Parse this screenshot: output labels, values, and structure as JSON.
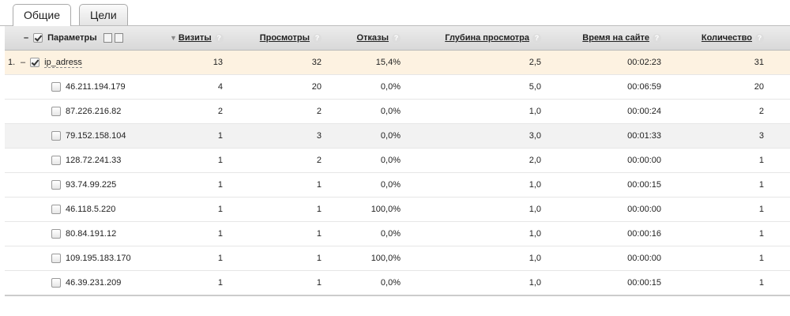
{
  "tabs": [
    "Общие",
    "Цели"
  ],
  "header": {
    "collapse": "–",
    "columns": [
      "Параметры",
      "Визиты",
      "Просмотры",
      "Отказы",
      "Глубина просмотра",
      "Время на сайте",
      "Количество"
    ]
  },
  "group": {
    "index": "1.",
    "collapse": "–",
    "label": "ip_adress",
    "values": [
      "13",
      "32",
      "15,4%",
      "2,5",
      "00:02:23",
      "31"
    ]
  },
  "rows": [
    {
      "label": "46.211.194.179",
      "values": [
        "4",
        "20",
        "0,0%",
        "5,0",
        "00:06:59",
        "20"
      ]
    },
    {
      "label": "87.226.216.82",
      "values": [
        "2",
        "2",
        "0,0%",
        "1,0",
        "00:00:24",
        "2"
      ]
    },
    {
      "label": "79.152.158.104",
      "values": [
        "1",
        "3",
        "0,0%",
        "3,0",
        "00:01:33",
        "3"
      ]
    },
    {
      "label": "128.72.241.33",
      "values": [
        "1",
        "2",
        "0,0%",
        "2,0",
        "00:00:00",
        "1"
      ]
    },
    {
      "label": "93.74.99.225",
      "values": [
        "1",
        "1",
        "0,0%",
        "1,0",
        "00:00:15",
        "1"
      ]
    },
    {
      "label": "46.118.5.220",
      "values": [
        "1",
        "1",
        "100,0%",
        "1,0",
        "00:00:00",
        "1"
      ]
    },
    {
      "label": "80.84.191.12",
      "values": [
        "1",
        "1",
        "0,0%",
        "1,0",
        "00:00:16",
        "1"
      ]
    },
    {
      "label": "109.195.183.170",
      "values": [
        "1",
        "1",
        "100,0%",
        "1,0",
        "00:00:00",
        "1"
      ]
    },
    {
      "label": "46.39.231.209",
      "values": [
        "1",
        "1",
        "0,0%",
        "1,0",
        "00:00:15",
        "1"
      ]
    }
  ]
}
